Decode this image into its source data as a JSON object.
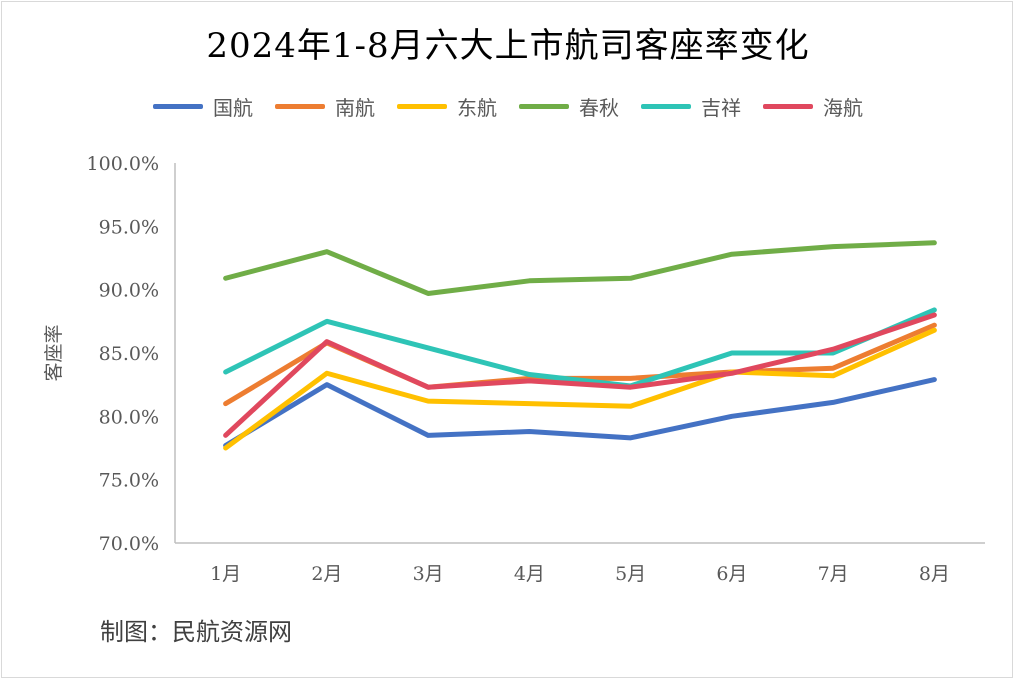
{
  "chart_data": {
    "type": "line",
    "title": "2024年1-8月六大上市航司客座率变化",
    "ylabel": "客座率",
    "xlabel": "",
    "categories": [
      "1月",
      "2月",
      "3月",
      "4月",
      "5月",
      "6月",
      "7月",
      "8月"
    ],
    "ylim": [
      70,
      100
    ],
    "yticks": [
      "70.0%",
      "75.0%",
      "80.0%",
      "85.0%",
      "90.0%",
      "95.0%",
      "100.0%"
    ],
    "legend_position": "top",
    "grid": "vertical lines at categories",
    "series": [
      {
        "name": "国航",
        "color": "#4472c4",
        "values": [
          77.7,
          82.5,
          78.5,
          78.8,
          78.3,
          80.0,
          81.1,
          82.9
        ]
      },
      {
        "name": "南航",
        "color": "#ed7d31",
        "values": [
          81.0,
          85.8,
          82.3,
          83.0,
          83.0,
          83.5,
          83.8,
          87.2
        ]
      },
      {
        "name": "东航",
        "color": "#ffc000",
        "values": [
          77.5,
          83.4,
          81.2,
          81.0,
          80.8,
          83.5,
          83.2,
          86.8
        ]
      },
      {
        "name": "春秋",
        "color": "#70ad47",
        "values": [
          90.9,
          93.0,
          89.7,
          90.7,
          90.9,
          92.8,
          93.4,
          93.7
        ]
      },
      {
        "name": "吉祥",
        "color": "#2ec4b6",
        "values": [
          83.5,
          87.5,
          85.4,
          83.3,
          82.4,
          85.0,
          85.0,
          88.4
        ]
      },
      {
        "name": "海航",
        "color": "#e0485e",
        "values": [
          78.5,
          85.9,
          82.3,
          82.8,
          82.3,
          83.4,
          85.3,
          88.0
        ]
      }
    ]
  },
  "footer": {
    "credit": "制图：民航资源网"
  }
}
